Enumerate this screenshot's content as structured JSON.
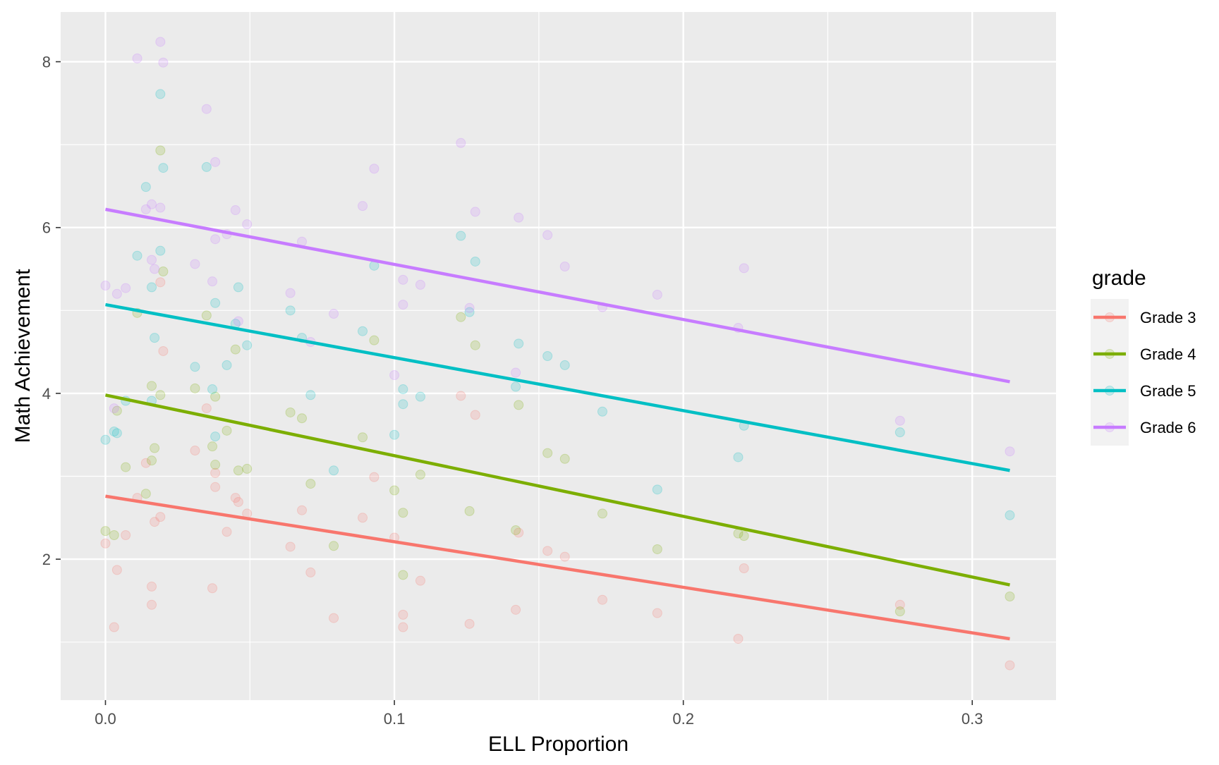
{
  "chart_data": {
    "type": "scatter",
    "title": "",
    "xlabel": "ELL Proportion",
    "ylabel": "Math Achievement",
    "xlim": [
      -0.0155,
      0.329
    ],
    "ylim": [
      0.3,
      8.6
    ],
    "x_ticks": [
      0.0,
      0.1,
      0.2,
      0.3
    ],
    "x_tick_labels": [
      "0.0",
      "0.1",
      "0.2",
      "0.3"
    ],
    "x_minor_ticks": [
      0.05,
      0.15,
      0.25
    ],
    "y_ticks": [
      2,
      4,
      6,
      8
    ],
    "y_tick_labels": [
      "2",
      "4",
      "6",
      "8"
    ],
    "y_minor_ticks": [
      1,
      3,
      5,
      7
    ],
    "grid": true,
    "legend": {
      "title": "grade",
      "position": "right"
    },
    "series": [
      {
        "name": "Grade 3",
        "color": "#F8766D",
        "fit_line": {
          "x": [
            0.0,
            0.313
          ],
          "y": [
            2.76,
            1.04
          ]
        },
        "points": [
          [
            0.0,
            2.19
          ],
          [
            0.003,
            1.18
          ],
          [
            0.004,
            1.87
          ],
          [
            0.007,
            2.29
          ],
          [
            0.011,
            2.74
          ],
          [
            0.014,
            3.16
          ],
          [
            0.016,
            1.67
          ],
          [
            0.016,
            1.45
          ],
          [
            0.017,
            2.45
          ],
          [
            0.019,
            2.51
          ],
          [
            0.019,
            5.34
          ],
          [
            0.02,
            4.51
          ],
          [
            0.031,
            3.31
          ],
          [
            0.035,
            3.82
          ],
          [
            0.037,
            1.65
          ],
          [
            0.038,
            2.87
          ],
          [
            0.038,
            3.04
          ],
          [
            0.042,
            2.33
          ],
          [
            0.045,
            2.74
          ],
          [
            0.046,
            2.69
          ],
          [
            0.049,
            2.55
          ],
          [
            0.064,
            2.15
          ],
          [
            0.068,
            2.59
          ],
          [
            0.071,
            1.84
          ],
          [
            0.079,
            1.29
          ],
          [
            0.089,
            2.5
          ],
          [
            0.093,
            2.99
          ],
          [
            0.1,
            2.26
          ],
          [
            0.103,
            1.33
          ],
          [
            0.103,
            1.18
          ],
          [
            0.109,
            1.74
          ],
          [
            0.123,
            3.97
          ],
          [
            0.126,
            1.22
          ],
          [
            0.128,
            3.74
          ],
          [
            0.142,
            1.39
          ],
          [
            0.143,
            2.32
          ],
          [
            0.153,
            2.1
          ],
          [
            0.159,
            2.03
          ],
          [
            0.172,
            1.51
          ],
          [
            0.191,
            1.35
          ],
          [
            0.219,
            1.04
          ],
          [
            0.221,
            1.89
          ],
          [
            0.275,
            1.45
          ],
          [
            0.313,
            0.72
          ]
        ]
      },
      {
        "name": "Grade 4",
        "color": "#7CAE00",
        "fit_line": {
          "x": [
            0.0,
            0.313
          ],
          "y": [
            3.98,
            1.69
          ]
        },
        "points": [
          [
            0.0,
            2.34
          ],
          [
            0.003,
            2.29
          ],
          [
            0.004,
            3.79
          ],
          [
            0.007,
            3.11
          ],
          [
            0.011,
            4.97
          ],
          [
            0.014,
            2.79
          ],
          [
            0.016,
            4.09
          ],
          [
            0.016,
            3.19
          ],
          [
            0.017,
            3.34
          ],
          [
            0.019,
            6.93
          ],
          [
            0.019,
            3.98
          ],
          [
            0.02,
            5.47
          ],
          [
            0.031,
            4.06
          ],
          [
            0.035,
            4.94
          ],
          [
            0.037,
            3.36
          ],
          [
            0.038,
            3.96
          ],
          [
            0.038,
            3.14
          ],
          [
            0.042,
            3.55
          ],
          [
            0.045,
            4.53
          ],
          [
            0.046,
            3.07
          ],
          [
            0.049,
            3.09
          ],
          [
            0.064,
            3.77
          ],
          [
            0.068,
            3.7
          ],
          [
            0.071,
            2.91
          ],
          [
            0.079,
            2.16
          ],
          [
            0.089,
            3.47
          ],
          [
            0.093,
            4.64
          ],
          [
            0.1,
            2.83
          ],
          [
            0.103,
            2.56
          ],
          [
            0.103,
            1.81
          ],
          [
            0.109,
            3.02
          ],
          [
            0.123,
            4.92
          ],
          [
            0.126,
            2.58
          ],
          [
            0.128,
            4.58
          ],
          [
            0.142,
            2.35
          ],
          [
            0.143,
            3.86
          ],
          [
            0.153,
            3.28
          ],
          [
            0.159,
            3.21
          ],
          [
            0.172,
            2.55
          ],
          [
            0.191,
            2.12
          ],
          [
            0.219,
            2.31
          ],
          [
            0.221,
            2.28
          ],
          [
            0.275,
            1.37
          ],
          [
            0.313,
            1.55
          ]
        ]
      },
      {
        "name": "Grade 5",
        "color": "#00BFC4",
        "fit_line": {
          "x": [
            0.0,
            0.313
          ],
          "y": [
            5.07,
            3.07
          ]
        },
        "points": [
          [
            0.0,
            3.44
          ],
          [
            0.003,
            3.54
          ],
          [
            0.004,
            3.52
          ],
          [
            0.007,
            3.91
          ],
          [
            0.011,
            5.66
          ],
          [
            0.014,
            6.49
          ],
          [
            0.016,
            5.28
          ],
          [
            0.016,
            3.91
          ],
          [
            0.017,
            4.67
          ],
          [
            0.019,
            7.61
          ],
          [
            0.019,
            5.72
          ],
          [
            0.02,
            6.72
          ],
          [
            0.031,
            4.32
          ],
          [
            0.035,
            6.73
          ],
          [
            0.037,
            4.05
          ],
          [
            0.038,
            5.09
          ],
          [
            0.038,
            3.48
          ],
          [
            0.042,
            4.34
          ],
          [
            0.045,
            4.84
          ],
          [
            0.046,
            5.28
          ],
          [
            0.049,
            4.58
          ],
          [
            0.064,
            5.0
          ],
          [
            0.068,
            4.67
          ],
          [
            0.071,
            3.98
          ],
          [
            0.079,
            3.07
          ],
          [
            0.089,
            4.75
          ],
          [
            0.093,
            5.54
          ],
          [
            0.1,
            3.5
          ],
          [
            0.103,
            4.05
          ],
          [
            0.103,
            3.87
          ],
          [
            0.109,
            3.96
          ],
          [
            0.123,
            5.9
          ],
          [
            0.126,
            4.98
          ],
          [
            0.128,
            5.59
          ],
          [
            0.142,
            4.08
          ],
          [
            0.143,
            4.6
          ],
          [
            0.153,
            4.45
          ],
          [
            0.159,
            4.34
          ],
          [
            0.172,
            3.78
          ],
          [
            0.191,
            2.84
          ],
          [
            0.219,
            3.23
          ],
          [
            0.221,
            3.61
          ],
          [
            0.275,
            3.53
          ],
          [
            0.313,
            2.53
          ]
        ]
      },
      {
        "name": "Grade 6",
        "color": "#C77CFF",
        "fit_line": {
          "x": [
            0.0,
            0.313
          ],
          "y": [
            6.22,
            4.14
          ]
        },
        "points": [
          [
            0.0,
            5.3
          ],
          [
            0.003,
            3.82
          ],
          [
            0.004,
            5.2
          ],
          [
            0.007,
            5.27
          ],
          [
            0.011,
            8.04
          ],
          [
            0.014,
            6.22
          ],
          [
            0.016,
            6.28
          ],
          [
            0.016,
            5.61
          ],
          [
            0.017,
            5.5
          ],
          [
            0.019,
            8.24
          ],
          [
            0.019,
            6.24
          ],
          [
            0.02,
            7.99
          ],
          [
            0.031,
            5.56
          ],
          [
            0.035,
            7.43
          ],
          [
            0.037,
            5.35
          ],
          [
            0.038,
            6.79
          ],
          [
            0.038,
            5.86
          ],
          [
            0.042,
            5.92
          ],
          [
            0.045,
            6.21
          ],
          [
            0.046,
            4.87
          ],
          [
            0.049,
            6.04
          ],
          [
            0.064,
            5.21
          ],
          [
            0.068,
            5.83
          ],
          [
            0.071,
            4.62
          ],
          [
            0.079,
            4.96
          ],
          [
            0.089,
            6.26
          ],
          [
            0.093,
            6.71
          ],
          [
            0.1,
            4.22
          ],
          [
            0.103,
            5.37
          ],
          [
            0.103,
            5.07
          ],
          [
            0.109,
            5.31
          ],
          [
            0.123,
            7.02
          ],
          [
            0.126,
            5.03
          ],
          [
            0.128,
            6.19
          ],
          [
            0.142,
            4.25
          ],
          [
            0.143,
            6.12
          ],
          [
            0.153,
            5.91
          ],
          [
            0.159,
            5.53
          ],
          [
            0.172,
            5.04
          ],
          [
            0.191,
            5.19
          ],
          [
            0.219,
            4.79
          ],
          [
            0.221,
            5.51
          ],
          [
            0.275,
            3.67
          ],
          [
            0.313,
            3.3
          ]
        ]
      }
    ]
  }
}
